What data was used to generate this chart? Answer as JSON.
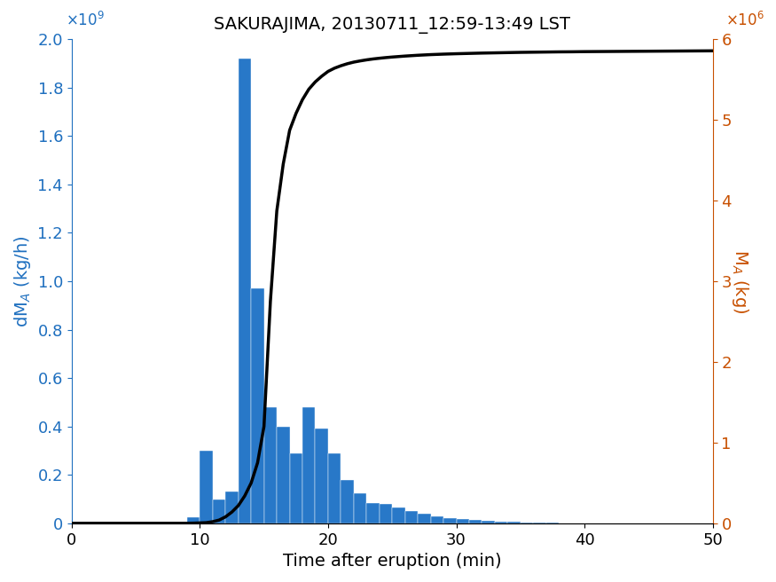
{
  "title": "SAKURAJIMA, 20130711_12:59-13:49 LST",
  "xlabel": "Time after eruption (min)",
  "ylabel_left": "dM_A (kg/h)",
  "ylabel_right": "M_A (kg)",
  "bar_color": "#2878C8",
  "line_color": "#000000",
  "left_axis_color": "#1E6FBF",
  "right_axis_color": "#C85000",
  "xlim": [
    0,
    50
  ],
  "ylim_left": [
    0,
    2000000000
  ],
  "ylim_right": [
    0,
    6000000
  ],
  "bar_centers": [
    9.5,
    10.5,
    11.5,
    12.5,
    13.5,
    14.5,
    15.5,
    16.5,
    17.5,
    18.5,
    19.5,
    20.5,
    21.5,
    22.5,
    23.5,
    24.5,
    25.5,
    26.5,
    27.5,
    28.5,
    29.5,
    30.5,
    31.5,
    32.5,
    33.5,
    34.5,
    35.5,
    36.5,
    37.5,
    38.5,
    39.5,
    40.5,
    41.5,
    42.5,
    43.5
  ],
  "bar_heights": [
    25000000,
    300000000,
    100000000,
    130000000,
    1920000000,
    970000000,
    480000000,
    400000000,
    290000000,
    480000000,
    390000000,
    290000000,
    180000000,
    125000000,
    85000000,
    80000000,
    65000000,
    50000000,
    38000000,
    28000000,
    22000000,
    18000000,
    14000000,
    10000000,
    8000000,
    5000000,
    3500000,
    2500000,
    1500000,
    1000000,
    700000,
    400000,
    250000,
    150000,
    80000
  ],
  "cum_x": [
    0,
    1,
    2,
    3,
    4,
    5,
    6,
    7,
    8,
    9,
    9.5,
    10,
    10.5,
    11,
    11.5,
    12,
    12.5,
    13,
    13.5,
    14,
    14.5,
    15,
    15.5,
    16,
    16.5,
    17,
    17.5,
    18,
    18.5,
    19,
    19.5,
    20,
    20.5,
    21,
    21.5,
    22,
    22.5,
    23,
    23.5,
    24,
    24.5,
    25,
    26,
    27,
    28,
    29,
    30,
    31,
    32,
    33,
    34,
    35,
    36,
    37,
    38,
    39,
    40,
    41,
    42,
    43,
    44,
    45,
    46,
    47,
    48,
    49,
    50
  ],
  "cum_y": [
    0,
    0,
    0,
    0,
    0,
    0,
    0,
    0,
    0,
    0,
    2000,
    5000,
    8000,
    20000,
    40000,
    80000,
    140000,
    220000,
    340000,
    500000,
    750000,
    1200000,
    2750000,
    3870000,
    4450000,
    4870000,
    5080000,
    5250000,
    5380000,
    5470000,
    5540000,
    5600000,
    5640000,
    5670000,
    5695000,
    5715000,
    5730000,
    5743000,
    5754000,
    5763000,
    5771000,
    5778000,
    5790000,
    5800000,
    5808000,
    5814000,
    5819000,
    5823000,
    5827000,
    5830000,
    5833000,
    5836000,
    5838000,
    5840000,
    5842000,
    5843000,
    5845000,
    5846000,
    5847000,
    5848000,
    5849000,
    5850000,
    5851000,
    5852000,
    5853000,
    5854000,
    5855000
  ]
}
